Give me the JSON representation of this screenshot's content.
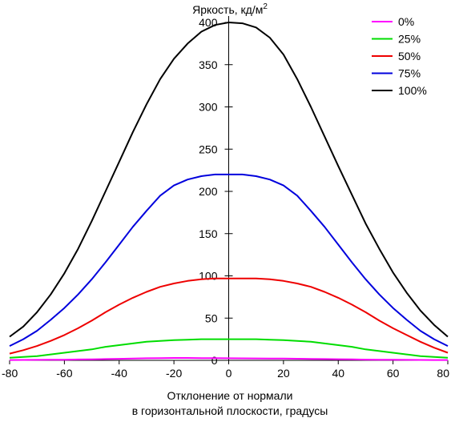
{
  "chart_data": {
    "type": "line",
    "ylabel": "Яркость, кд/м",
    "ylabel_sup": "2",
    "xlabel_line1": "Отклонение от нормали",
    "xlabel_line2": "в горизонтальной плоскости, градусы",
    "xlim": [
      -80,
      80
    ],
    "ylim": [
      0,
      400
    ],
    "x_ticks": [
      -80,
      -60,
      -40,
      -20,
      0,
      20,
      40,
      60,
      80
    ],
    "y_ticks": [
      50,
      100,
      150,
      200,
      250,
      300,
      350,
      400
    ],
    "origin_label": "0",
    "legend_position": "top-right",
    "x": [
      -80,
      -75,
      -70,
      -65,
      -60,
      -55,
      -50,
      -45,
      -40,
      -35,
      -30,
      -25,
      -20,
      -15,
      -10,
      -5,
      0,
      5,
      10,
      15,
      20,
      25,
      30,
      35,
      40,
      45,
      50,
      55,
      60,
      65,
      70,
      75,
      80
    ],
    "series": [
      {
        "name": "0%",
        "color": "#ff00ff",
        "values": [
          0.4,
          0.5,
          0.6,
          0.7,
          0.8,
          1.0,
          1.2,
          1.5,
          1.8,
          2.2,
          2.5,
          2.7,
          2.8,
          2.8,
          2.7,
          2.6,
          2.5,
          2.4,
          2.3,
          2.2,
          2.1,
          1.9,
          1.7,
          1.5,
          1.3,
          1.1,
          0.9,
          0.8,
          0.7,
          0.6,
          0.5,
          0.4,
          0.4
        ]
      },
      {
        "name": "25%",
        "color": "#00dd00",
        "values": [
          3,
          4,
          5,
          7,
          9,
          11,
          13,
          16,
          18,
          20,
          22,
          23,
          24,
          24.5,
          25,
          25,
          25,
          25,
          25,
          24.5,
          24,
          23,
          22,
          20,
          18,
          16,
          13,
          11,
          9,
          7,
          5,
          4,
          3
        ]
      },
      {
        "name": "50%",
        "color": "#ee0000",
        "values": [
          8,
          12,
          17,
          23,
          30,
          38,
          47,
          57,
          66,
          74,
          81,
          87,
          91,
          94,
          96,
          97,
          97,
          97,
          97,
          96,
          94,
          91,
          87,
          81,
          74,
          66,
          57,
          47,
          38,
          30,
          22,
          15,
          9
        ]
      },
      {
        "name": "75%",
        "color": "#0000dd",
        "values": [
          17,
          25,
          35,
          48,
          62,
          78,
          96,
          116,
          137,
          158,
          177,
          195,
          207,
          214,
          218,
          220,
          220,
          220,
          218,
          214,
          207,
          195,
          177,
          158,
          137,
          116,
          96,
          78,
          62,
          48,
          35,
          25,
          17
        ]
      },
      {
        "name": "100%",
        "color": "#000000",
        "values": [
          28,
          40,
          57,
          78,
          103,
          132,
          165,
          200,
          235,
          270,
          303,
          333,
          357,
          375,
          389,
          397,
          400,
          399,
          394,
          382,
          362,
          333,
          300,
          265,
          230,
          196,
          162,
          132,
          104,
          80,
          59,
          42,
          28
        ]
      }
    ]
  }
}
